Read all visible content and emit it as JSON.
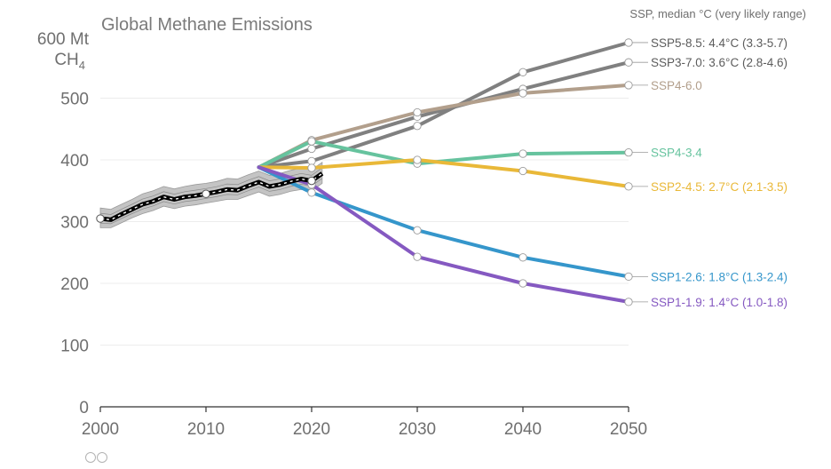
{
  "chart_data": {
    "type": "line",
    "title": "Global Methane Emissions",
    "unit_main": "600 Mt",
    "unit_sub_main": "CH",
    "unit_sub_script": "4",
    "legend_header": "SSP, median °C (very likely range)",
    "xlim": [
      2000,
      2050
    ],
    "ylim": [
      0,
      600
    ],
    "x_ticks": [
      2000,
      2010,
      2020,
      2030,
      2040,
      2050
    ],
    "y_ticks": [
      0,
      100,
      200,
      300,
      400,
      500
    ],
    "grid": true,
    "colors": {
      "historical": "#000000",
      "band": "#c4c4c4",
      "marker_fill": "#ffffff"
    },
    "historical": {
      "name": "",
      "x": [
        2000,
        2001,
        2002,
        2003,
        2004,
        2005,
        2006,
        2007,
        2008,
        2009,
        2010,
        2011,
        2012,
        2013,
        2014,
        2015,
        2016,
        2017,
        2018,
        2019,
        2020,
        2021
      ],
      "y": [
        305,
        303,
        312,
        320,
        328,
        333,
        340,
        336,
        340,
        342,
        345,
        348,
        352,
        351,
        358,
        364,
        357,
        360,
        365,
        369,
        366,
        378
      ],
      "low": [
        290,
        290,
        298,
        306,
        313,
        318,
        325,
        321,
        325,
        327,
        330,
        333,
        336,
        336,
        342,
        348,
        341,
        344,
        349,
        352,
        350,
        362
      ],
      "high": [
        322,
        320,
        328,
        336,
        345,
        350,
        357,
        353,
        357,
        360,
        362,
        365,
        370,
        369,
        376,
        382,
        375,
        378,
        383,
        387,
        384,
        396
      ],
      "open_markers_x": [
        2000,
        2010,
        2020
      ]
    },
    "series": [
      {
        "key": "ssp585",
        "label": "SSP5-8.5: 4.4°C (3.3-5.7)",
        "color": "#808080",
        "x": [
          2015,
          2020,
          2030,
          2040,
          2050
        ],
        "y": [
          388,
          398,
          455,
          542,
          590
        ]
      },
      {
        "key": "ssp370",
        "label": "SSP3-7.0: 3.6°C (2.8-4.6)",
        "color": "#808080",
        "x": [
          2015,
          2020,
          2030,
          2040,
          2050
        ],
        "y": [
          388,
          418,
          470,
          515,
          558
        ]
      },
      {
        "key": "ssp460",
        "label": "SSP4-6.0",
        "color": "#b29f8c",
        "x": [
          2015,
          2020,
          2030,
          2040,
          2050
        ],
        "y": [
          388,
          432,
          477,
          508,
          521
        ]
      },
      {
        "key": "ssp434",
        "label": "SSP4-3.4",
        "color": "#66c39e",
        "x": [
          2015,
          2020,
          2030,
          2040,
          2050
        ],
        "y": [
          388,
          430,
          394,
          410,
          412
        ]
      },
      {
        "key": "ssp245",
        "label": "SSP2-4.5: 2.7°C (2.1-3.5)",
        "color": "#e9b838",
        "x": [
          2015,
          2020,
          2030,
          2040,
          2050
        ],
        "y": [
          388,
          387,
          400,
          382,
          357
        ]
      },
      {
        "key": "ssp126",
        "label": "SSP1-2.6: 1.8°C (1.3-2.4)",
        "color": "#3596cb",
        "x": [
          2015,
          2020,
          2030,
          2040,
          2050
        ],
        "y": [
          388,
          347,
          286,
          242,
          211
        ]
      },
      {
        "key": "ssp119",
        "label": "SSP1-1.9: 1.4°C (1.0-1.8)",
        "color": "#8559c1",
        "x": [
          2015,
          2020,
          2030,
          2040,
          2050
        ],
        "y": [
          388,
          360,
          243,
          200,
          170
        ]
      }
    ]
  }
}
